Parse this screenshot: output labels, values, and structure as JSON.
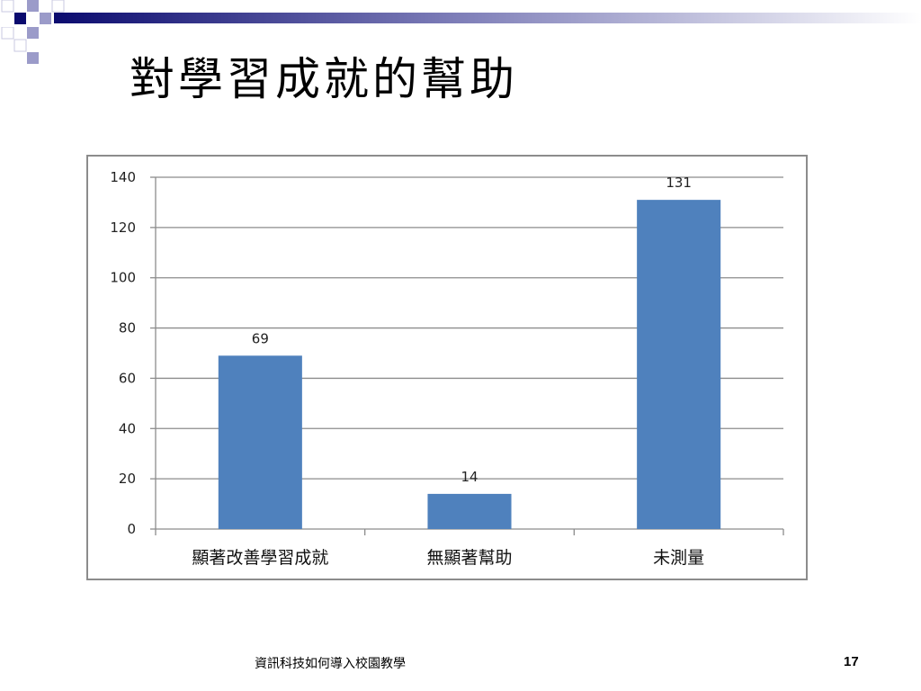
{
  "slide": {
    "title": "對學習成就的幫助",
    "footer": "資訊科技如何導入校園教學",
    "page_number": "17"
  },
  "colors": {
    "bar": "#4f81bd",
    "gridline": "#8c8c8c",
    "band_dark": "#0b0b6f",
    "band_mid": "#9b9bc9"
  },
  "chart_data": {
    "type": "bar",
    "categories": [
      "顯著改善學習成就",
      "無顯著幫助",
      "未測量"
    ],
    "values": [
      69,
      14,
      131
    ],
    "data_labels": [
      "69",
      "14",
      "131"
    ],
    "ylim": [
      0,
      140
    ],
    "yticks": [
      0,
      20,
      40,
      60,
      80,
      100,
      120,
      140
    ],
    "grid": true,
    "legend": "none"
  }
}
